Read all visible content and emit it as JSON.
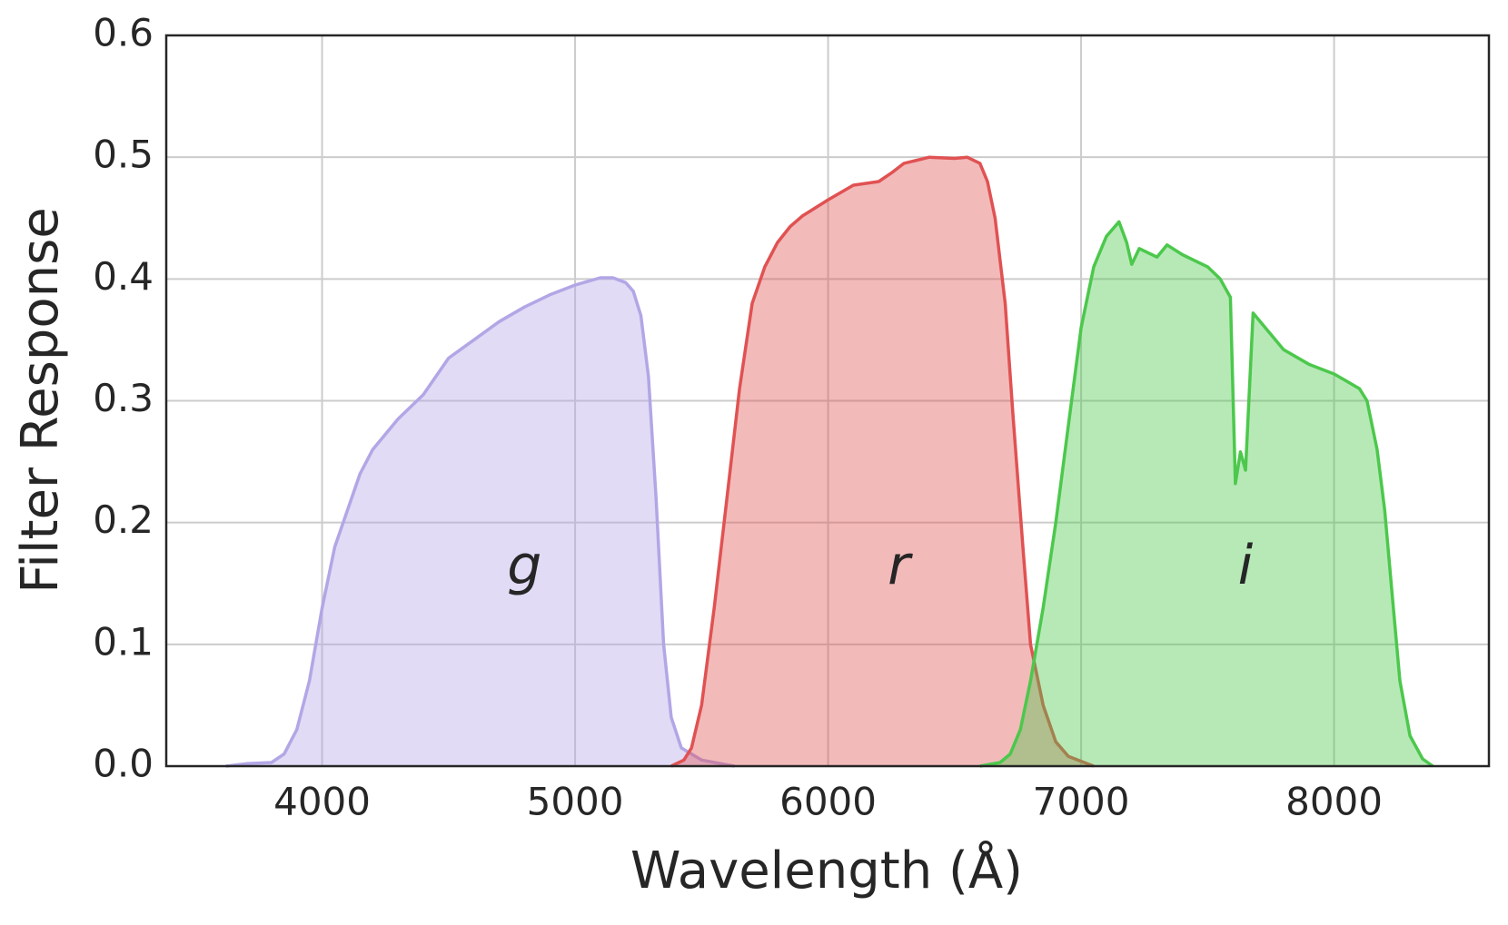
{
  "chart_data": {
    "type": "area",
    "xlabel": "Wavelength (Å)",
    "ylabel": "Filter Response",
    "xlim": [
      3384,
      8612
    ],
    "ylim": [
      0,
      0.6
    ],
    "xticks": [
      4000,
      5000,
      6000,
      7000,
      8000
    ],
    "yticks": [
      {
        "value": 0,
        "label": "0.0"
      },
      0.1,
      0.2,
      0.3,
      0.4,
      0.5,
      0.6
    ],
    "grid": true,
    "series": [
      {
        "name": "g",
        "color": "#b3a6e6",
        "x": [
          3620,
          3700,
          3800,
          3850,
          3900,
          3950,
          4000,
          4050,
          4100,
          4150,
          4200,
          4300,
          4400,
          4500,
          4600,
          4700,
          4800,
          4900,
          5000,
          5100,
          5150,
          5200,
          5230,
          5260,
          5290,
          5320,
          5350,
          5380,
          5420,
          5500,
          5630
        ],
        "values": [
          0,
          0.002,
          0.003,
          0.01,
          0.03,
          0.07,
          0.13,
          0.18,
          0.21,
          0.24,
          0.26,
          0.285,
          0.305,
          0.335,
          0.35,
          0.365,
          0.377,
          0.387,
          0.395,
          0.401,
          0.401,
          0.397,
          0.39,
          0.37,
          0.32,
          0.22,
          0.1,
          0.04,
          0.015,
          0.005,
          0
        ]
      },
      {
        "name": "r",
        "color": "#e05252",
        "x": [
          5380,
          5430,
          5460,
          5500,
          5550,
          5600,
          5650,
          5700,
          5750,
          5800,
          5850,
          5900,
          6000,
          6100,
          6200,
          6250,
          6300,
          6400,
          6500,
          6550,
          6600,
          6630,
          6660,
          6700,
          6730,
          6770,
          6800,
          6850,
          6900,
          6950,
          7050
        ],
        "values": [
          0,
          0.005,
          0.015,
          0.05,
          0.13,
          0.22,
          0.31,
          0.38,
          0.41,
          0.43,
          0.443,
          0.452,
          0.465,
          0.477,
          0.48,
          0.487,
          0.495,
          0.5,
          0.499,
          0.5,
          0.495,
          0.48,
          0.45,
          0.38,
          0.29,
          0.18,
          0.1,
          0.05,
          0.02,
          0.008,
          0
        ]
      },
      {
        "name": "i",
        "color": "#4cc84c",
        "x": [
          6600,
          6680,
          6720,
          6760,
          6800,
          6850,
          6900,
          6950,
          7000,
          7050,
          7100,
          7150,
          7180,
          7200,
          7230,
          7300,
          7340,
          7400,
          7500,
          7550,
          7590,
          7610,
          7630,
          7650,
          7680,
          7800,
          7900,
          8000,
          8050,
          8100,
          8130,
          8170,
          8200,
          8230,
          8260,
          8300,
          8350,
          8390
        ],
        "values": [
          0,
          0.003,
          0.01,
          0.03,
          0.07,
          0.13,
          0.2,
          0.28,
          0.36,
          0.41,
          0.435,
          0.447,
          0.43,
          0.412,
          0.425,
          0.418,
          0.428,
          0.42,
          0.41,
          0.4,
          0.385,
          0.232,
          0.258,
          0.243,
          0.372,
          0.342,
          0.33,
          0.322,
          0.316,
          0.31,
          0.3,
          0.26,
          0.21,
          0.14,
          0.07,
          0.025,
          0.006,
          0
        ]
      }
    ]
  }
}
